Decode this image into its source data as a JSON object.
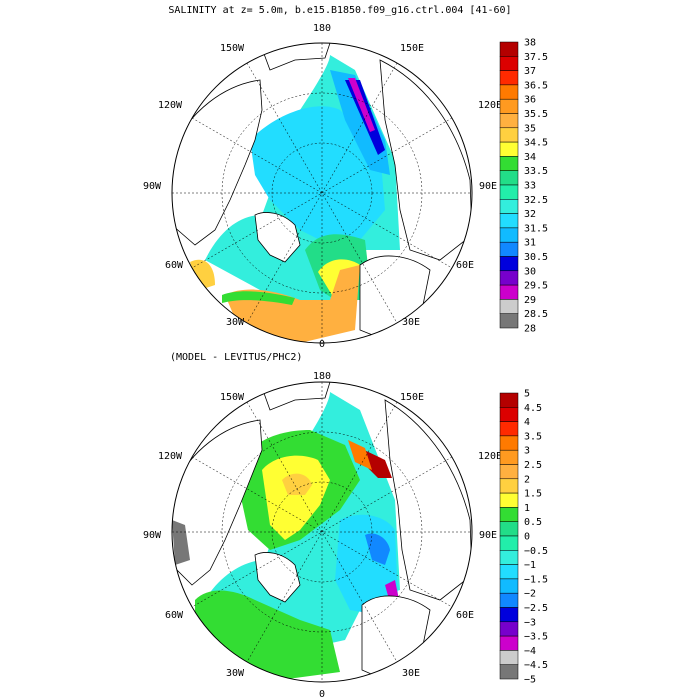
{
  "panel_top": {
    "title": "SALINITY at z=    5.0m, b.e15.B1850.f09_g16.ctrl.004 [41-60]",
    "colorbar": {
      "labels": [
        "38",
        "37.5",
        "37",
        "36.5",
        "36",
        "35.5",
        "35",
        "34.5",
        "34",
        "33.5",
        "33",
        "32.5",
        "32",
        "31.5",
        "31",
        "30.5",
        "30",
        "29.5",
        "29",
        "28.5",
        "28"
      ],
      "colors": [
        "#b40000",
        "#dc0000",
        "#ff2a00",
        "#ff7a00",
        "#ff9a20",
        "#ffb040",
        "#ffd040",
        "#ffff33",
        "#33dd33",
        "#22dd88",
        "#22eeaa",
        "#33eedd",
        "#22ddff",
        "#11bbff",
        "#1188ff",
        "#0000dd",
        "#7700cc",
        "#cc00cc",
        "#cccccc",
        "#777777"
      ]
    },
    "lon_labels": {
      "lon_180": "180",
      "lon_150e": "150E",
      "lon_120e": "120E",
      "lon_90e": "90E",
      "lon_60e": "60E",
      "lon_30e": "30E",
      "lon_0": "0",
      "lon_30w": "30W",
      "lon_60w": "60W",
      "lon_90w": "90W",
      "lon_120w": "120W",
      "lon_150w": "150W"
    }
  },
  "panel_bottom": {
    "title": "(MODEL - LEVITUS/PHC2)",
    "colorbar": {
      "labels": [
        "5",
        "4.5",
        "4",
        "3.5",
        "3",
        "2.5",
        "2",
        "1.5",
        "1",
        "0.5",
        "0",
        "−0.5",
        "−1",
        "−1.5",
        "−2",
        "−2.5",
        "−3",
        "−3.5",
        "−4",
        "−4.5",
        "−5"
      ],
      "colors": [
        "#b40000",
        "#dc0000",
        "#ff2a00",
        "#ff7a00",
        "#ff9a20",
        "#ffb040",
        "#ffd040",
        "#ffff33",
        "#33dd33",
        "#22dd88",
        "#22eeaa",
        "#33eedd",
        "#22ddff",
        "#11bbff",
        "#1188ff",
        "#0000dd",
        "#7700cc",
        "#cc00cc",
        "#cccccc",
        "#777777"
      ]
    },
    "lon_labels": {
      "lon_180": "180",
      "lon_150e": "150E",
      "lon_120e": "120E",
      "lon_90e": "90E",
      "lon_60e": "60E",
      "lon_30e": "30E",
      "lon_0": "0",
      "lon_30w": "30W",
      "lon_60w": "60W",
      "lon_90w": "90W",
      "lon_120w": "120W",
      "lon_150w": "150W"
    }
  }
}
